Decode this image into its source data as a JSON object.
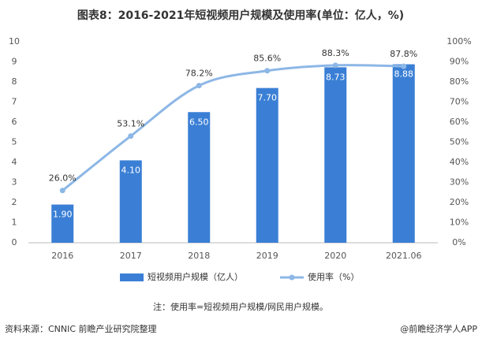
{
  "chart_data": {
    "type": "bar",
    "title": "图表8：2016-2021年短视频用户规模及使用率(单位：亿人，%)",
    "categories": [
      "2016",
      "2017",
      "2018",
      "2019",
      "2020",
      "2021.06"
    ],
    "series": [
      {
        "name": "短视频用户规模（亿人）",
        "type": "bar",
        "color": "#3a7fd5",
        "values": [
          1.9,
          4.1,
          6.5,
          7.7,
          8.73,
          8.88
        ],
        "value_labels": [
          "1.90",
          "4.10",
          "6.50",
          "7.70",
          "8.73",
          "8.88"
        ]
      },
      {
        "name": "使用率（%）",
        "type": "line",
        "axis": "y2",
        "color": "#8db7e6",
        "values": [
          26.0,
          53.1,
          78.2,
          85.6,
          88.3,
          87.8
        ],
        "value_labels": [
          "26.0%",
          "53.1%",
          "78.2%",
          "85.6%",
          "88.3%",
          "87.8%"
        ]
      }
    ],
    "ylim": [
      0,
      10
    ],
    "yticks": [
      0,
      1,
      2,
      3,
      4,
      5,
      6,
      7,
      8,
      9,
      10
    ],
    "y2lim": [
      0,
      100
    ],
    "y2ticks": [
      {
        "value": 0,
        "label": "0%"
      },
      {
        "value": 10,
        "label": "10%"
      },
      {
        "value": 20,
        "label": "20%"
      },
      {
        "value": 30,
        "label": "30%"
      },
      {
        "value": 40,
        "label": "40%"
      },
      {
        "value": 50,
        "label": "50%"
      },
      {
        "value": 60,
        "label": "60%"
      },
      {
        "value": 70,
        "label": "70%"
      },
      {
        "value": 80,
        "label": "80%"
      },
      {
        "value": 90,
        "label": "90%"
      },
      {
        "value": 100,
        "label": "100%"
      }
    ],
    "grid": false,
    "note": "注：使用率=短视频用户规模/网民用户规模。",
    "source": "资料来源：CNNIC 前瞻产业研究院整理",
    "brand": "@前瞻经济学人APP"
  }
}
